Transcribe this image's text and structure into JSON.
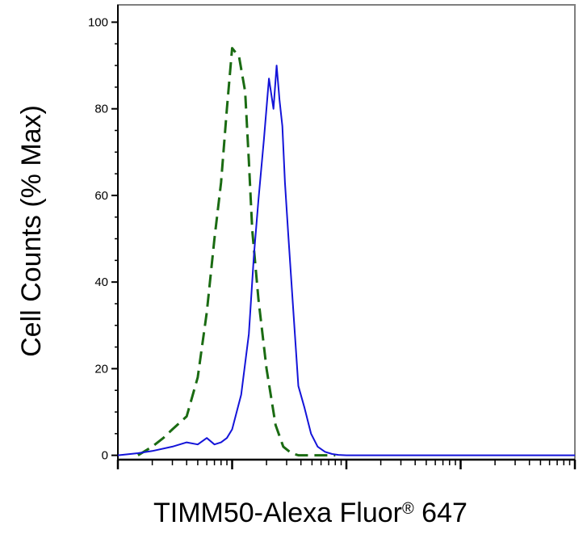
{
  "chart_data": {
    "type": "line",
    "title": "",
    "xlabel": "TIMM50-Alexa Fluor",
    "xlabel_sup": "®",
    "xlabel_suffix": " 647",
    "ylabel": "Cell Counts (% Max)",
    "xscale": "log",
    "xlim": [
      100,
      1000000
    ],
    "ylim": [
      -1,
      104
    ],
    "yticks": [
      0,
      20,
      40,
      60,
      80,
      100
    ],
    "ytick_labels": [
      "0",
      "20",
      "40",
      "60",
      "80",
      "100"
    ],
    "grid": false,
    "legend": "none",
    "series": [
      {
        "color": "#1a6b12",
        "linestyle": "dashed",
        "x": [
          150,
          200,
          250,
          300,
          400,
          500,
          600,
          700,
          800,
          900,
          1000,
          1150,
          1300,
          1400,
          1500,
          1700,
          2000,
          2400,
          2800,
          3300,
          3800,
          4300,
          5000,
          6000,
          8000
        ],
        "y": [
          0,
          2,
          4,
          6,
          9,
          18,
          33,
          50,
          63,
          80,
          94,
          92,
          84,
          68,
          52,
          36,
          20,
          7,
          2,
          0.5,
          0,
          0,
          0,
          0,
          0
        ]
      },
      {
        "color": "#1414d9",
        "linestyle": "solid",
        "x": [
          100,
          150,
          200,
          300,
          400,
          500,
          600,
          700,
          800,
          900,
          1000,
          1200,
          1400,
          1550,
          1700,
          1900,
          2100,
          2300,
          2450,
          2600,
          2750,
          2900,
          3100,
          3400,
          3800,
          4300,
          4900,
          5600,
          6500,
          7500,
          8500,
          10000,
          20000,
          100000,
          1000000
        ],
        "y": [
          0,
          0.5,
          1,
          2,
          3,
          2.5,
          4,
          2.5,
          3,
          4,
          6,
          14,
          28,
          46,
          59,
          73,
          87,
          80,
          90,
          82,
          76,
          63,
          51,
          35,
          16,
          11,
          5,
          2,
          0.8,
          0.3,
          0.1,
          0,
          0,
          0,
          0
        ]
      }
    ]
  }
}
